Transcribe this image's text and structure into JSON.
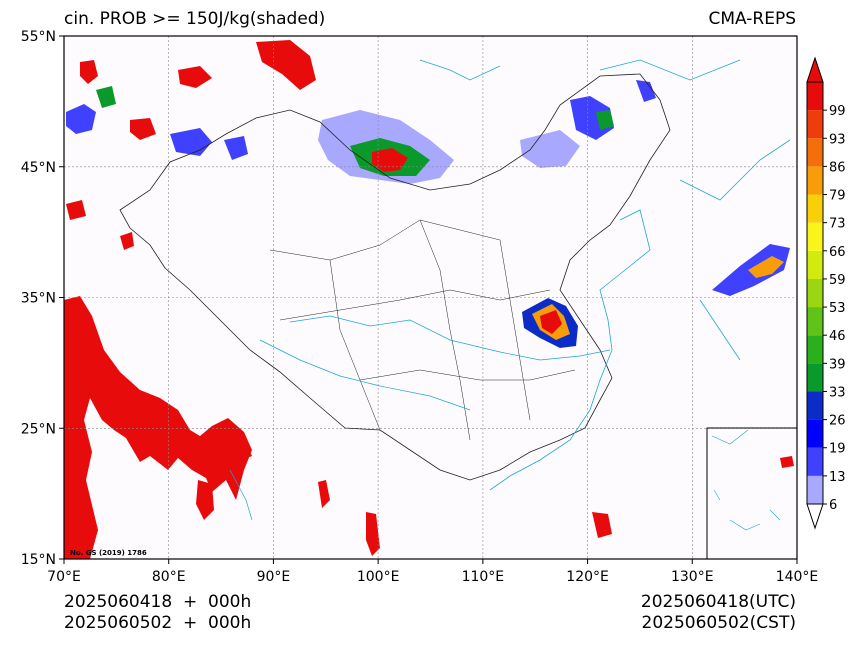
{
  "header": {
    "title_left": "cin. PROB >= 150J/kg(shaded)",
    "title_right": "CMA-REPS"
  },
  "footer": {
    "left_line1": "2025060418  +  000h",
    "left_line2": "2025060502  +  000h",
    "right_line1": "2025060418(UTC)",
    "right_line2": "2025060502(CST)"
  },
  "map": {
    "lon_range": [
      70,
      140
    ],
    "lat_range": [
      15,
      55
    ],
    "lon_ticks": [
      "70°E",
      "80°E",
      "90°E",
      "100°E",
      "110°E",
      "120°E",
      "130°E",
      "140°E"
    ],
    "lat_ticks": [
      "55°N",
      "45°N",
      "35°N",
      "25°N",
      "15°N"
    ],
    "credit": "No. GS (2019) 1786",
    "grid": true
  },
  "colorbar": {
    "levels": [
      "6",
      "13",
      "19",
      "26",
      "33",
      "39",
      "46",
      "53",
      "59",
      "66",
      "73",
      "79",
      "86",
      "93",
      "99"
    ],
    "colors": [
      "#a8a8ff",
      "#4040ff",
      "#0000ff",
      "#0c2cc8",
      "#0a9a2c",
      "#2ab01e",
      "#60c418",
      "#9ad612",
      "#d2ea0c",
      "#f7f51a",
      "#f9cf0a",
      "#f79d0a",
      "#f46f0a",
      "#ee3c0a",
      "#e80b0b"
    ],
    "extend": "both"
  }
}
